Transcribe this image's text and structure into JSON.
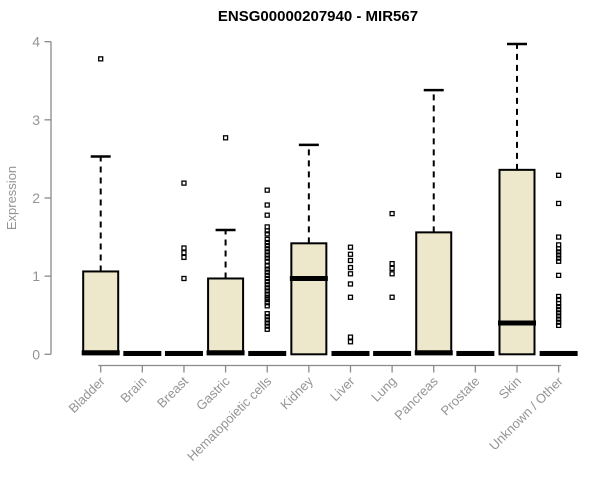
{
  "chart_data": {
    "type": "boxplot",
    "title": "ENSG00000207940 - MIR567",
    "xlabel": "",
    "ylabel": "Expression",
    "ylim": [
      0,
      4
    ],
    "yticks": [
      0,
      1,
      2,
      3,
      4
    ],
    "grid": false,
    "legend": "none",
    "x_label_rotation": 45,
    "categories": [
      "Bladder",
      "Brain",
      "Breast",
      "Gastric",
      "Hematopoietic cells",
      "Kidney",
      "Liver",
      "Lung",
      "Pancreas",
      "Prostate",
      "Skin",
      "Unknown / Other"
    ],
    "series": [
      {
        "name": "Bladder",
        "q1": 0,
        "median": 0.02,
        "q3": 1.06,
        "whisker_low": 0,
        "whisker_high": 2.53,
        "outliers": [
          3.78
        ]
      },
      {
        "name": "Brain",
        "q1": 0,
        "median": 0.01,
        "q3": 0.03,
        "whisker_low": 0,
        "whisker_high": 0.03,
        "outliers": []
      },
      {
        "name": "Breast",
        "q1": 0,
        "median": 0.01,
        "q3": 0.03,
        "whisker_low": 0,
        "whisker_high": 0.03,
        "outliers": [
          0.97,
          1.24,
          1.3,
          1.36,
          2.19
        ]
      },
      {
        "name": "Gastric",
        "q1": 0,
        "median": 0.02,
        "q3": 0.97,
        "whisker_low": 0,
        "whisker_high": 1.59,
        "outliers": [
          2.77
        ]
      },
      {
        "name": "Hematopoietic cells",
        "q1": 0,
        "median": 0.01,
        "q3": 0.03,
        "whisker_low": 0,
        "whisker_high": 0.03,
        "outliers": [
          0.32,
          0.36,
          0.4,
          0.44,
          0.48,
          0.52,
          0.62,
          0.66,
          0.7,
          0.73,
          0.77,
          0.81,
          0.85,
          0.89,
          0.93,
          0.97,
          1.01,
          1.05,
          1.09,
          1.13,
          1.19,
          1.23,
          1.27,
          1.31,
          1.35,
          1.39,
          1.43,
          1.47,
          1.54,
          1.58,
          1.63,
          1.78,
          1.91,
          2.1
        ]
      },
      {
        "name": "Kidney",
        "q1": 0,
        "median": 0.97,
        "q3": 1.42,
        "whisker_low": 0,
        "whisker_high": 2.68,
        "outliers": []
      },
      {
        "name": "Liver",
        "q1": 0,
        "median": 0.01,
        "q3": 0.03,
        "whisker_low": 0,
        "whisker_high": 0.03,
        "outliers": [
          0.16,
          0.22,
          0.73,
          0.9,
          1.03,
          1.11,
          1.2,
          1.28,
          1.37
        ]
      },
      {
        "name": "Lung",
        "q1": 0,
        "median": 0.01,
        "q3": 0.03,
        "whisker_low": 0,
        "whisker_high": 0.03,
        "outliers": [
          0.73,
          1.03,
          1.1,
          1.16,
          1.8
        ]
      },
      {
        "name": "Pancreas",
        "q1": 0,
        "median": 0.02,
        "q3": 1.56,
        "whisker_low": 0,
        "whisker_high": 3.38,
        "outliers": []
      },
      {
        "name": "Prostate",
        "q1": 0,
        "median": 0.01,
        "q3": 0.03,
        "whisker_low": 0,
        "whisker_high": 0.03,
        "outliers": []
      },
      {
        "name": "Skin",
        "q1": 0,
        "median": 0.4,
        "q3": 2.36,
        "whisker_low": 0,
        "whisker_high": 3.97,
        "outliers": []
      },
      {
        "name": "Unknown / Other",
        "q1": 0,
        "median": 0.01,
        "q3": 0.03,
        "whisker_low": 0,
        "whisker_high": 0.03,
        "outliers": [
          0.37,
          0.41,
          0.45,
          0.49,
          0.53,
          0.57,
          0.61,
          0.65,
          0.7,
          0.74,
          1.01,
          1.19,
          1.23,
          1.27,
          1.31,
          1.35,
          1.4,
          1.5,
          1.93,
          2.29
        ]
      }
    ],
    "colors": {
      "box_fill": "#ede8cc",
      "box_border": "#000000",
      "median": "#000000",
      "whisker": "#000000",
      "outlier": "#000000",
      "axis": "#8a8a8a",
      "axis_text": "#949494",
      "title": "#000000",
      "background": "#ffffff"
    }
  }
}
